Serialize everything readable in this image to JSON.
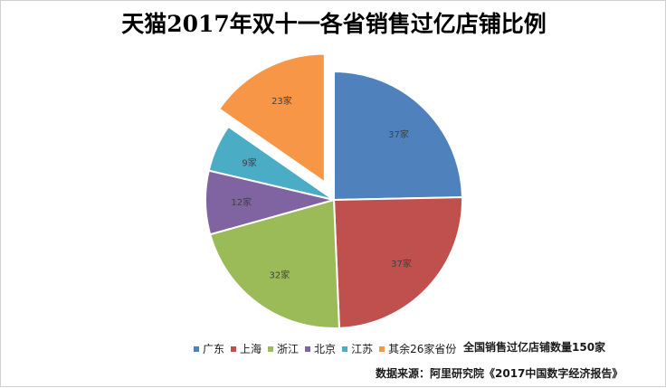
{
  "chart_data": {
    "type": "pie",
    "title": "天猫2017年双十一各省销售过亿店铺比例",
    "categories": [
      "广东",
      "上海",
      "浙江",
      "北京",
      "江苏",
      "其余26家省份"
    ],
    "values": [
      37,
      37,
      32,
      12,
      9,
      23
    ],
    "data_labels": [
      "37家",
      "37家",
      "32家",
      "12家",
      "9家",
      "23家"
    ],
    "colors": [
      "#4f81bd",
      "#c0504d",
      "#9bbb59",
      "#8064a2",
      "#4bacc6",
      "#f79646"
    ],
    "exploded_slice": "其余26家省份",
    "legend_position": "bottom"
  },
  "annotations": {
    "total": "全国销售过亿店铺数量150家",
    "source": "数据来源：阿里研究院《2017中国数字经济报告》"
  }
}
